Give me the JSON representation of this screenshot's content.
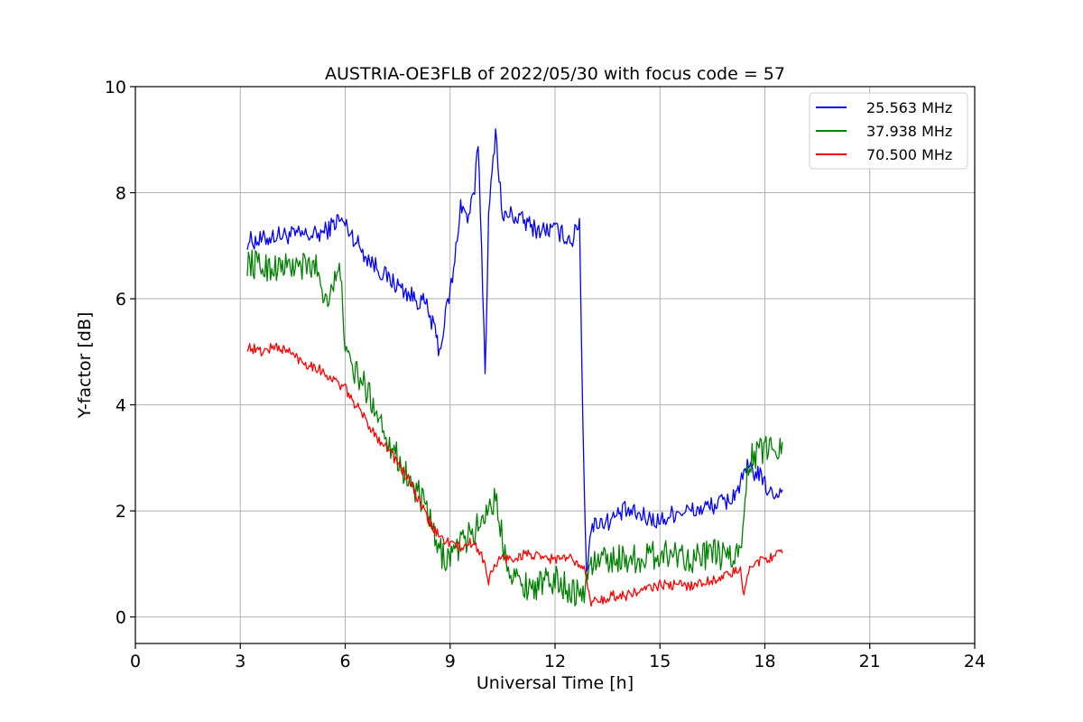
{
  "chart_data": {
    "type": "line",
    "title": "AUSTRIA-OE3FLB of 2022/05/30 with focus code = 57",
    "xlabel": "Universal Time [h]",
    "ylabel": "Y-factor [dB]",
    "xlim": [
      0,
      24
    ],
    "ylim": [
      -0.5,
      10
    ],
    "xticks": [
      "0",
      "3",
      "6",
      "9",
      "12",
      "15",
      "18",
      "21",
      "24"
    ],
    "yticks": [
      "0",
      "2",
      "4",
      "6",
      "8",
      "10"
    ],
    "grid": true,
    "legend_position": "top-right",
    "series": [
      {
        "name": "25.563 MHz",
        "color": "#0000ff",
        "x": [
          3.2,
          3.6,
          4.0,
          4.4,
          4.8,
          5.2,
          5.5,
          5.8,
          6.0,
          6.3,
          6.6,
          6.9,
          7.2,
          7.6,
          8.0,
          8.3,
          8.6,
          8.7,
          8.9,
          9.1,
          9.3,
          9.5,
          9.7,
          9.8,
          9.9,
          10.0,
          10.1,
          10.3,
          10.5,
          10.7,
          11.0,
          11.5,
          12.0,
          12.5,
          12.7,
          12.8,
          12.9,
          13.0,
          13.2,
          13.5,
          14.0,
          14.5,
          15.0,
          15.5,
          16.0,
          16.5,
          17.0,
          17.3,
          17.5,
          17.8,
          18.0,
          18.2,
          18.5
        ],
        "y": [
          7.1,
          7.1,
          7.2,
          7.2,
          7.2,
          7.2,
          7.3,
          7.5,
          7.4,
          7.1,
          6.8,
          6.6,
          6.4,
          6.2,
          6.0,
          5.9,
          5.3,
          5.0,
          5.8,
          6.5,
          7.8,
          7.5,
          8.0,
          9.0,
          7.0,
          4.6,
          7.5,
          9.2,
          7.5,
          7.6,
          7.5,
          7.3,
          7.3,
          7.1,
          7.5,
          3.5,
          0.8,
          1.6,
          1.8,
          1.8,
          2.0,
          1.9,
          1.8,
          2.0,
          2.0,
          2.1,
          2.2,
          2.5,
          2.8,
          2.7,
          2.5,
          2.3,
          2.4
        ]
      },
      {
        "name": "37.938 MHz",
        "color": "#008000",
        "x": [
          3.2,
          3.6,
          4.0,
          4.4,
          4.8,
          5.2,
          5.4,
          5.6,
          5.9,
          6.0,
          6.3,
          6.6,
          6.9,
          7.2,
          7.5,
          7.8,
          8.1,
          8.4,
          8.6,
          8.9,
          9.2,
          9.5,
          9.8,
          10.1,
          10.3,
          10.6,
          11.0,
          11.5,
          12.0,
          12.5,
          12.8,
          13.0,
          13.5,
          14.0,
          14.5,
          15.0,
          15.5,
          16.0,
          16.5,
          17.0,
          17.3,
          17.5,
          17.8,
          18.0,
          18.3,
          18.5
        ],
        "y": [
          6.7,
          6.6,
          6.6,
          6.6,
          6.6,
          6.6,
          6.0,
          6.2,
          6.5,
          4.9,
          4.6,
          4.3,
          3.9,
          3.4,
          3.0,
          2.6,
          2.3,
          1.9,
          1.3,
          1.1,
          1.3,
          1.5,
          1.7,
          2.1,
          2.2,
          1.1,
          0.6,
          0.6,
          0.7,
          0.5,
          0.4,
          1.0,
          1.1,
          1.1,
          1.1,
          1.2,
          1.2,
          1.1,
          1.2,
          1.1,
          1.2,
          2.9,
          3.1,
          3.2,
          3.2,
          3.3
        ]
      },
      {
        "name": "70.500 MHz",
        "color": "#ff0000",
        "x": [
          3.2,
          3.6,
          4.0,
          4.4,
          4.8,
          5.2,
          5.6,
          6.0,
          6.3,
          6.6,
          6.9,
          7.2,
          7.5,
          7.8,
          8.1,
          8.4,
          8.7,
          9.0,
          9.3,
          9.6,
          9.9,
          10.1,
          10.4,
          10.8,
          11.2,
          11.6,
          12.0,
          12.4,
          12.8,
          13.0,
          13.3,
          13.6,
          14.0,
          14.5,
          15.0,
          15.5,
          16.0,
          16.5,
          17.0,
          17.3,
          17.4,
          17.6,
          18.0,
          18.5
        ],
        "y": [
          5.1,
          5.0,
          5.1,
          5.0,
          4.8,
          4.7,
          4.5,
          4.3,
          4.0,
          3.7,
          3.4,
          3.2,
          2.9,
          2.6,
          2.2,
          1.8,
          1.5,
          1.4,
          1.3,
          1.4,
          1.2,
          0.7,
          1.1,
          1.1,
          1.2,
          1.1,
          1.1,
          1.1,
          1.0,
          0.3,
          0.3,
          0.4,
          0.4,
          0.5,
          0.6,
          0.6,
          0.6,
          0.7,
          0.8,
          0.9,
          0.4,
          1.0,
          1.1,
          1.2
        ]
      }
    ]
  }
}
